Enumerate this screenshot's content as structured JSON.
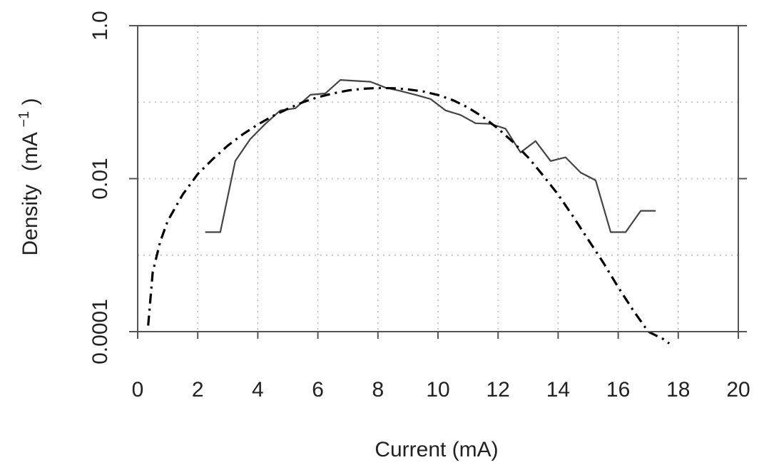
{
  "chart_data": {
    "type": "line",
    "title": "",
    "xlabel": "Current (mA)",
    "ylabel": "Density",
    "ylabel_unit_base": "(mA",
    "ylabel_unit_exp": "−1",
    "ylabel_unit_close": ")",
    "xlim": [
      0,
      20
    ],
    "ylim": [
      0.0001,
      1.0
    ],
    "yscale": "log",
    "grid": true,
    "legend": "none",
    "x_ticks": [
      "0",
      "2",
      "4",
      "6",
      "8",
      "10",
      "12",
      "14",
      "16",
      "18",
      "20"
    ],
    "y_ticks": [
      "0.0001",
      "0.01",
      "1.0"
    ],
    "y_tick_values": [
      0.0001,
      0.01,
      1.0
    ],
    "series": [
      {
        "style": "solid",
        "color": "#444444",
        "x": [
          2.25,
          2.75,
          3.25,
          3.75,
          4.25,
          4.75,
          5.25,
          5.75,
          6.25,
          6.75,
          7.25,
          7.75,
          8.25,
          8.75,
          9.25,
          9.75,
          10.25,
          10.75,
          11.25,
          11.75,
          12.25,
          12.75,
          13.25,
          13.75,
          14.25,
          14.75,
          15.25,
          15.75,
          16.25,
          16.75,
          17.25
        ],
        "y": [
          0.002,
          0.002,
          0.017,
          0.033,
          0.052,
          0.078,
          0.083,
          0.125,
          0.13,
          0.195,
          0.19,
          0.185,
          0.155,
          0.14,
          0.125,
          0.11,
          0.078,
          0.068,
          0.053,
          0.052,
          0.045,
          0.022,
          0.031,
          0.017,
          0.019,
          0.012,
          0.0095,
          0.002,
          0.002,
          0.0038,
          0.0038
        ]
      },
      {
        "style": "dashdot",
        "color": "#000000",
        "x": [
          0.35,
          0.5,
          0.75,
          1.0,
          1.5,
          2.0,
          2.5,
          3.0,
          3.5,
          4.0,
          4.5,
          5.0,
          5.5,
          6.0,
          6.5,
          7.0,
          7.5,
          8.0,
          8.5,
          9.0,
          9.5,
          10.0,
          10.5,
          11.0,
          11.5,
          12.0,
          12.5,
          13.0,
          13.5,
          14.0,
          14.5,
          15.0,
          15.5,
          16.0,
          16.5,
          17.0,
          17.5,
          17.7
        ],
        "y": [
          0.00012,
          0.0006,
          0.0015,
          0.0028,
          0.0062,
          0.0115,
          0.018,
          0.027,
          0.038,
          0.051,
          0.066,
          0.082,
          0.1,
          0.116,
          0.13,
          0.142,
          0.15,
          0.153,
          0.152,
          0.147,
          0.138,
          0.124,
          0.106,
          0.085,
          0.064,
          0.045,
          0.03,
          0.019,
          0.011,
          0.0062,
          0.0032,
          0.0016,
          0.0008,
          0.00038,
          0.00019,
          0.0001,
          8e-05,
          7e-05
        ]
      }
    ]
  }
}
